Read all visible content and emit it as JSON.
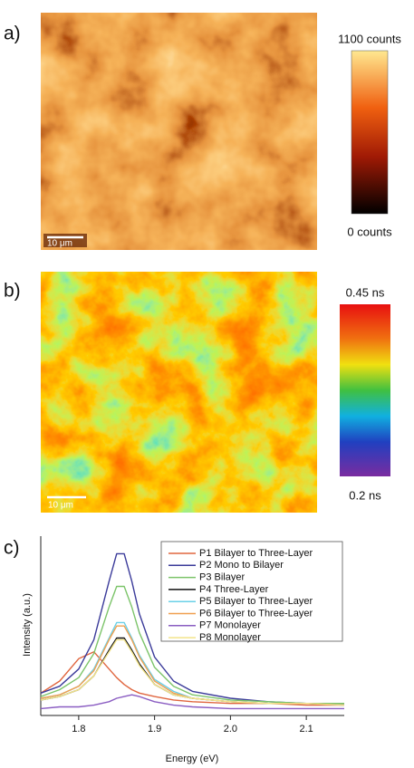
{
  "panel_a": {
    "label": "a)",
    "colorbar_max": "1100 counts",
    "colorbar_min": "0 counts",
    "scale_bar": "10 μm"
  },
  "panel_b": {
    "label": "b)",
    "colorbar_max": "0.45 ns",
    "colorbar_min": "0.2 ns",
    "scale_bar": "10 μm"
  },
  "chart_data": {
    "type": "line",
    "panel_label": "c)",
    "x_label": "Energy (eV)",
    "y_label": "Intensity (a.u.)",
    "x": [
      1.75,
      1.775,
      1.8,
      1.82,
      1.84,
      1.85,
      1.86,
      1.87,
      1.88,
      1.9,
      1.925,
      1.95,
      2.0,
      2.05,
      2.1,
      2.15
    ],
    "xlim": [
      1.75,
      2.15
    ],
    "xticks": [
      1.8,
      1.9,
      {
        "value": 2.0,
        "label": "2.0"
      },
      2.1
    ],
    "ylim": [
      0,
      1
    ],
    "series": [
      {
        "name": "P1 Bilayer to Three-Layer",
        "color": "#e0663f",
        "values": [
          0.13,
          0.2,
          0.33,
          0.37,
          0.27,
          0.22,
          0.18,
          0.15,
          0.13,
          0.11,
          0.09,
          0.08,
          0.07,
          0.07,
          0.06,
          0.06
        ]
      },
      {
        "name": "P2 Mono to Bilayer",
        "color": "#3b3b9a",
        "values": [
          0.13,
          0.17,
          0.27,
          0.44,
          0.78,
          0.94,
          0.94,
          0.78,
          0.59,
          0.34,
          0.2,
          0.14,
          0.1,
          0.08,
          0.07,
          0.07
        ]
      },
      {
        "name": "P3 Bilayer",
        "color": "#7cc46a",
        "values": [
          0.11,
          0.15,
          0.22,
          0.36,
          0.63,
          0.75,
          0.75,
          0.63,
          0.48,
          0.28,
          0.17,
          0.12,
          0.09,
          0.08,
          0.07,
          0.07
        ]
      },
      {
        "name": "P4 Three-Layer",
        "color": "#111111",
        "values": [
          0.09,
          0.11,
          0.15,
          0.23,
          0.38,
          0.45,
          0.45,
          0.38,
          0.3,
          0.18,
          0.12,
          0.1,
          0.08,
          0.07,
          0.07,
          0.06
        ]
      },
      {
        "name": "P5 Bilayer to Three-Layer",
        "color": "#6ad0e8",
        "values": [
          0.1,
          0.12,
          0.17,
          0.27,
          0.45,
          0.54,
          0.54,
          0.45,
          0.35,
          0.21,
          0.14,
          0.1,
          0.08,
          0.07,
          0.07,
          0.06
        ]
      },
      {
        "name": "P6 Bilayer to Three-Layer",
        "color": "#f0a050",
        "values": [
          0.1,
          0.12,
          0.17,
          0.26,
          0.44,
          0.52,
          0.52,
          0.44,
          0.34,
          0.2,
          0.13,
          0.1,
          0.08,
          0.07,
          0.07,
          0.06
        ]
      },
      {
        "name": "P7 Monolayer",
        "color": "#8a5cc2",
        "values": [
          0.04,
          0.05,
          0.05,
          0.06,
          0.08,
          0.1,
          0.11,
          0.12,
          0.11,
          0.08,
          0.06,
          0.05,
          0.04,
          0.04,
          0.04,
          0.04
        ]
      },
      {
        "name": "P8 Monolayer",
        "color": "#f2e48a",
        "values": [
          0.09,
          0.11,
          0.15,
          0.23,
          0.37,
          0.44,
          0.44,
          0.37,
          0.29,
          0.18,
          0.12,
          0.1,
          0.08,
          0.07,
          0.07,
          0.06
        ]
      }
    ]
  }
}
